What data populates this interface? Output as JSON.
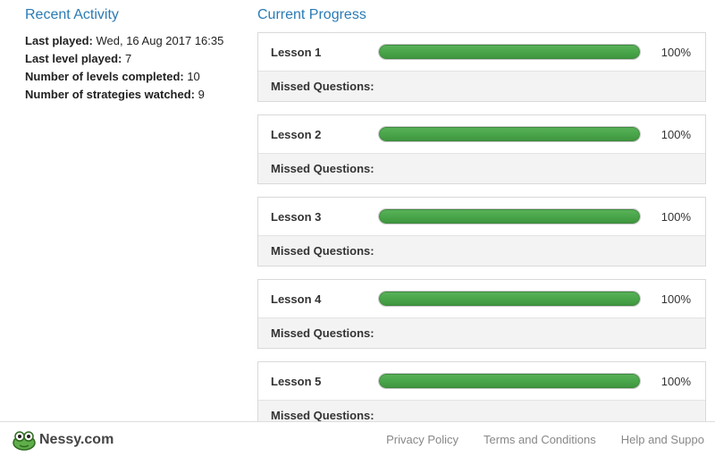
{
  "colors": {
    "heading": "#2a7bb5",
    "progress_fill_top": "#58b158",
    "progress_fill_bottom": "#3f963f",
    "progress_border": "#3d8a3d",
    "card_border": "#d9d9d9",
    "missed_bg": "#f3f3f3"
  },
  "recent_activity": {
    "title": "Recent Activity",
    "rows": [
      {
        "label": "Last played:",
        "value": " Wed, 16 Aug 2017 16:35"
      },
      {
        "label": "Last level played:",
        "value": " 7"
      },
      {
        "label": "Number of levels completed:",
        "value": " 10"
      },
      {
        "label": "Number of strategies watched:",
        "value": " 9"
      }
    ]
  },
  "progress": {
    "title": "Current Progress",
    "missed_label": "Missed Questions:",
    "lessons": [
      {
        "name": "Lesson 1",
        "percent": 100,
        "percent_label": "100%",
        "missed": ""
      },
      {
        "name": "Lesson 2",
        "percent": 100,
        "percent_label": "100%",
        "missed": ""
      },
      {
        "name": "Lesson 3",
        "percent": 100,
        "percent_label": "100%",
        "missed": ""
      },
      {
        "name": "Lesson 4",
        "percent": 100,
        "percent_label": "100%",
        "missed": ""
      },
      {
        "name": "Lesson 5",
        "percent": 100,
        "percent_label": "100%",
        "missed": ""
      }
    ]
  },
  "footer": {
    "logo_text": "Nessy.com",
    "links": [
      "Privacy Policy",
      "Terms and Conditions",
      "Help and Suppo"
    ]
  }
}
